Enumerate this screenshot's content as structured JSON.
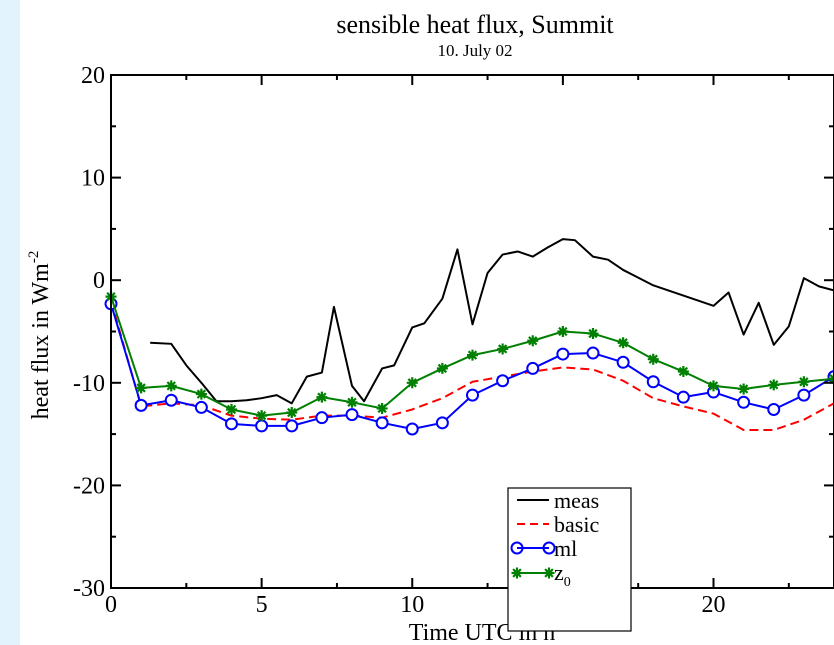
{
  "chart_data": {
    "type": "line",
    "title": "sensible heat flux, Summit",
    "subtitle": "10. July 02",
    "xlabel": "Time UTC in h",
    "ylabel_main": "heat flux in Wm",
    "ylabel_sup": "-2",
    "xlim": [
      0,
      24
    ],
    "ylim": [
      -30,
      20
    ],
    "xticks": [
      0,
      5,
      10,
      15,
      20
    ],
    "yticks": [
      -30,
      -20,
      -10,
      0,
      10,
      20
    ],
    "grid": false,
    "legend_position": "lower-right",
    "series": [
      {
        "name": "meas",
        "color": "#000000",
        "style": "solid",
        "marker": "none",
        "points": [
          [
            1.3,
            -6.1
          ],
          [
            2.0,
            -6.2
          ],
          [
            2.5,
            -8.3
          ],
          [
            3.0,
            -10.0
          ],
          [
            3.5,
            -11.8
          ],
          [
            4.0,
            -11.8
          ],
          [
            4.5,
            -11.7
          ],
          [
            5.0,
            -11.5
          ],
          [
            5.5,
            -11.2
          ],
          [
            6.0,
            -12.0
          ],
          [
            6.5,
            -9.4
          ],
          [
            7.0,
            -9.0
          ],
          [
            7.4,
            -2.6
          ],
          [
            8.0,
            -10.3
          ],
          [
            8.4,
            -11.8
          ],
          [
            9.0,
            -8.6
          ],
          [
            9.4,
            -8.3
          ],
          [
            10.0,
            -4.6
          ],
          [
            10.4,
            -4.2
          ],
          [
            11.0,
            -1.8
          ],
          [
            11.5,
            3.0
          ],
          [
            12.0,
            -4.3
          ],
          [
            12.5,
            0.7
          ],
          [
            13.0,
            2.5
          ],
          [
            13.5,
            2.8
          ],
          [
            14.0,
            2.3
          ],
          [
            14.5,
            3.2
          ],
          [
            15.0,
            4.0
          ],
          [
            15.4,
            3.9
          ],
          [
            16.0,
            2.3
          ],
          [
            16.5,
            2.0
          ],
          [
            17.0,
            1.0
          ],
          [
            18.0,
            -0.5
          ],
          [
            18.5,
            -1.0
          ],
          [
            19.0,
            -1.5
          ],
          [
            19.5,
            -2.0
          ],
          [
            20.0,
            -2.5
          ],
          [
            20.5,
            -1.2
          ],
          [
            21.0,
            -5.3
          ],
          [
            21.5,
            -2.2
          ],
          [
            22.0,
            -6.3
          ],
          [
            22.5,
            -4.5
          ],
          [
            23.0,
            0.2
          ],
          [
            23.5,
            -0.6
          ],
          [
            24.0,
            -1.0
          ]
        ]
      },
      {
        "name": "basic",
        "color": "#ff0000",
        "style": "dashed",
        "marker": "none",
        "points": [
          [
            0,
            -2.0
          ],
          [
            1,
            -12.3
          ],
          [
            2,
            -12.0
          ],
          [
            3,
            -12.2
          ],
          [
            4,
            -13.2
          ],
          [
            5,
            -13.5
          ],
          [
            6,
            -13.6
          ],
          [
            7,
            -13.2
          ],
          [
            8,
            -13.2
          ],
          [
            9,
            -13.4
          ],
          [
            10,
            -12.6
          ],
          [
            11,
            -11.5
          ],
          [
            12,
            -9.9
          ],
          [
            13,
            -9.4
          ],
          [
            14,
            -8.9
          ],
          [
            15,
            -8.5
          ],
          [
            16,
            -8.7
          ],
          [
            17,
            -9.8
          ],
          [
            18,
            -11.5
          ],
          [
            19,
            -12.3
          ],
          [
            20,
            -13.0
          ],
          [
            21,
            -14.6
          ],
          [
            22,
            -14.6
          ],
          [
            23,
            -13.6
          ],
          [
            24,
            -12.0
          ]
        ]
      },
      {
        "name": "ml",
        "color": "#0000ff",
        "style": "solid",
        "marker": "circle",
        "points": [
          [
            0,
            -2.3
          ],
          [
            1,
            -12.2
          ],
          [
            2,
            -11.7
          ],
          [
            3,
            -12.4
          ],
          [
            4,
            -14.0
          ],
          [
            5,
            -14.2
          ],
          [
            6,
            -14.2
          ],
          [
            7,
            -13.4
          ],
          [
            8,
            -13.1
          ],
          [
            9,
            -13.9
          ],
          [
            10,
            -14.5
          ],
          [
            11,
            -13.9
          ],
          [
            12,
            -11.2
          ],
          [
            13,
            -9.8
          ],
          [
            14,
            -8.6
          ],
          [
            15,
            -7.2
          ],
          [
            16,
            -7.1
          ],
          [
            17,
            -8.0
          ],
          [
            18,
            -9.9
          ],
          [
            19,
            -11.4
          ],
          [
            20,
            -10.9
          ],
          [
            21,
            -11.9
          ],
          [
            22,
            -12.6
          ],
          [
            23,
            -11.2
          ],
          [
            24,
            -9.4
          ]
        ]
      },
      {
        "name": "z",
        "name_sub": "0",
        "color": "#008000",
        "style": "solid",
        "marker": "star",
        "points": [
          [
            0,
            -1.6
          ],
          [
            1,
            -10.5
          ],
          [
            2,
            -10.3
          ],
          [
            3,
            -11.1
          ],
          [
            4,
            -12.6
          ],
          [
            5,
            -13.2
          ],
          [
            6,
            -12.9
          ],
          [
            7,
            -11.4
          ],
          [
            8,
            -11.9
          ],
          [
            9,
            -12.5
          ],
          [
            10,
            -10.0
          ],
          [
            11,
            -8.6
          ],
          [
            12,
            -7.3
          ],
          [
            13,
            -6.7
          ],
          [
            14,
            -5.9
          ],
          [
            15,
            -5.0
          ],
          [
            16,
            -5.2
          ],
          [
            17,
            -6.1
          ],
          [
            18,
            -7.7
          ],
          [
            19,
            -8.9
          ],
          [
            20,
            -10.3
          ],
          [
            21,
            -10.6
          ],
          [
            22,
            -10.2
          ],
          [
            23,
            -9.9
          ],
          [
            24,
            -9.6
          ]
        ]
      }
    ]
  }
}
